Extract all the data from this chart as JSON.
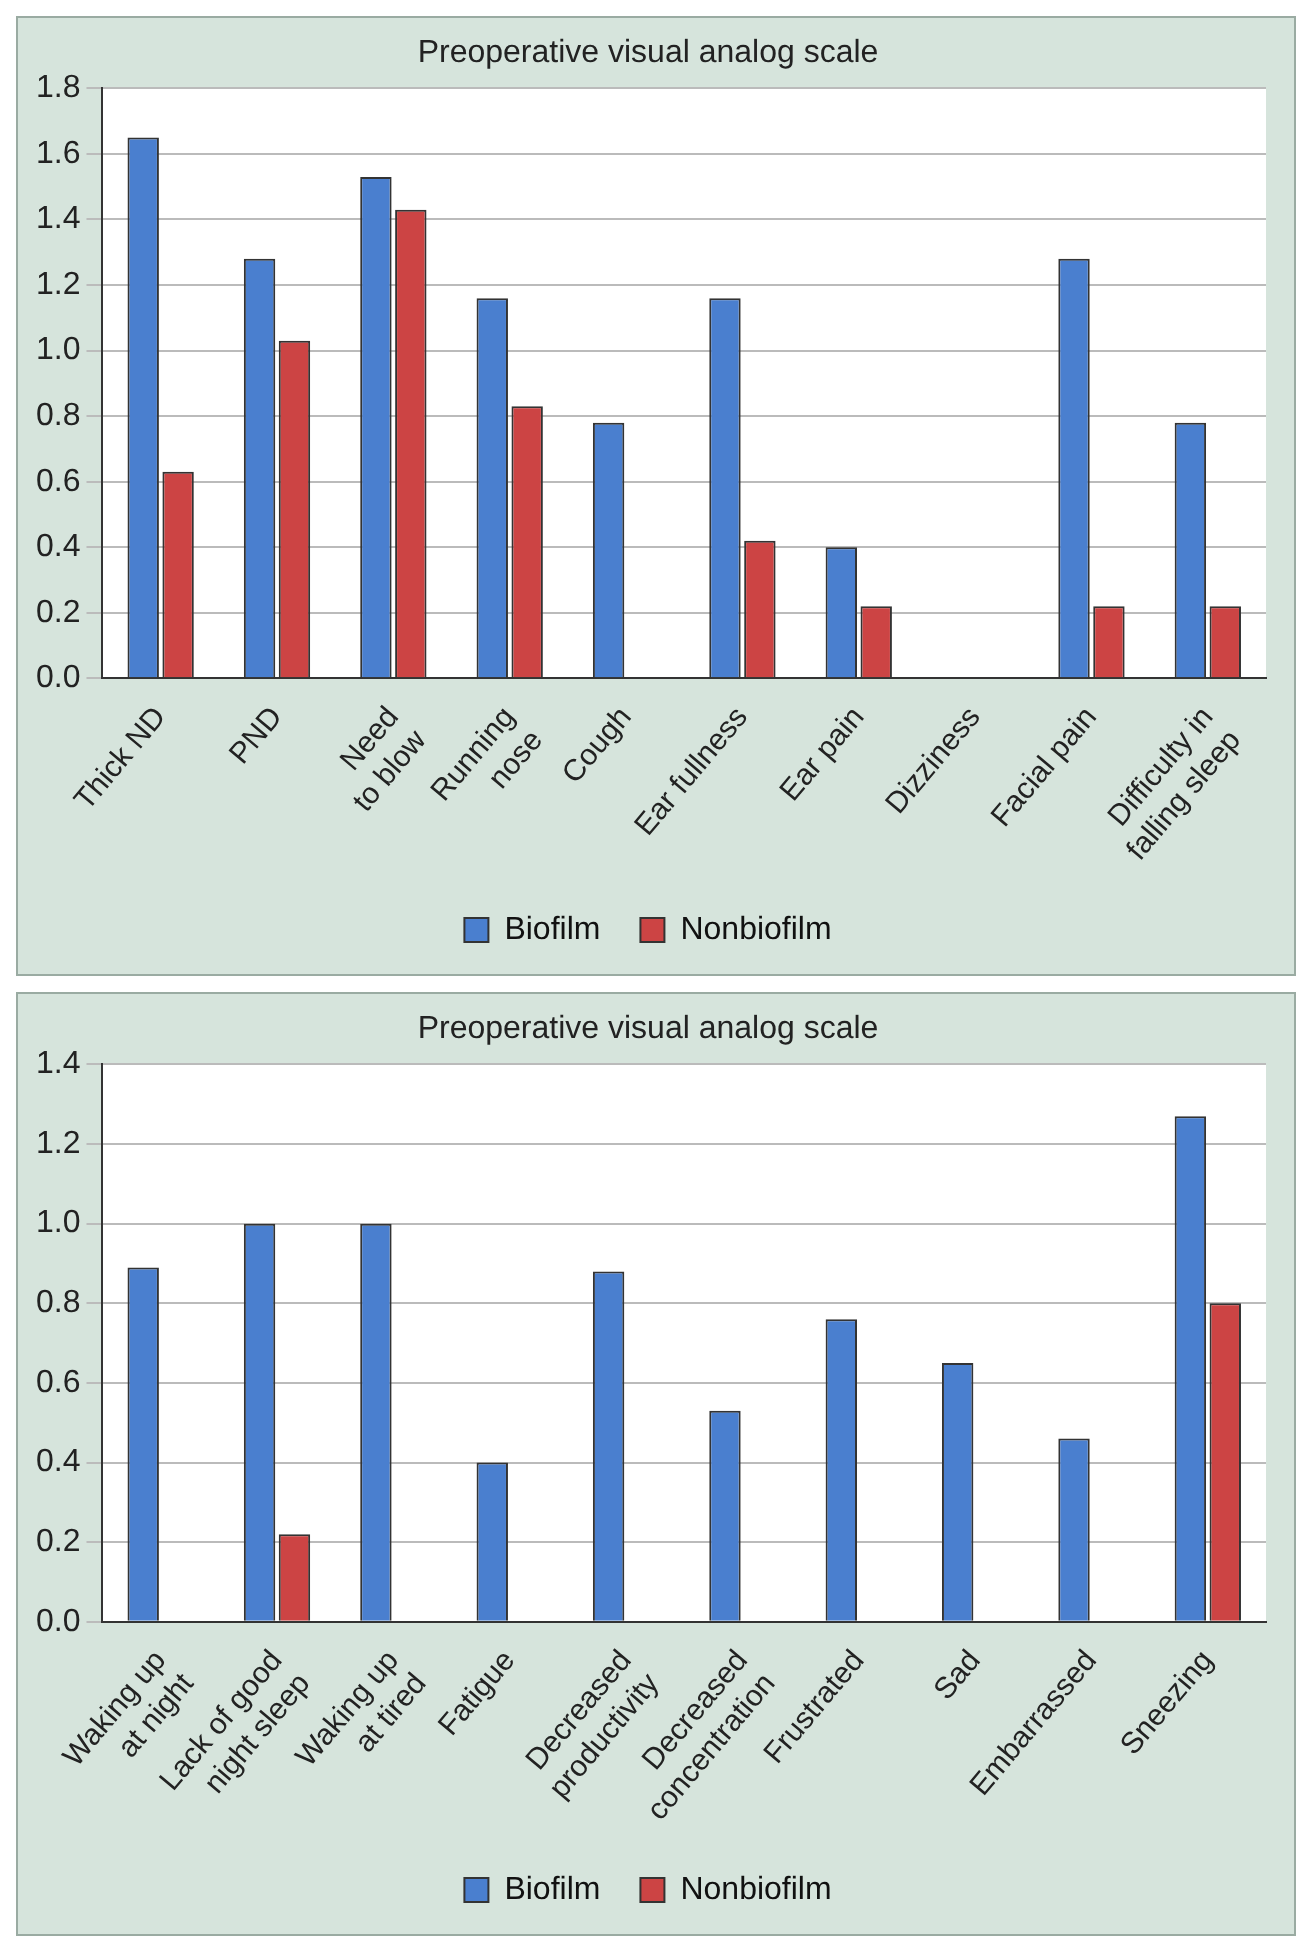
{
  "chart_data": [
    {
      "type": "bar",
      "title": "Preoperative visual analog scale",
      "categories": [
        "Thick ND",
        "PND",
        "Need\nto blow",
        "Running\nnose",
        "Cough",
        "Ear fullness",
        "Ear pain",
        "Dizziness",
        "Facial pain",
        "Difficulty in\nfalling sleep"
      ],
      "series": [
        {
          "name": "Biofilm",
          "color": "#4a7fcf",
          "values": [
            1.65,
            1.28,
            1.53,
            1.16,
            0.78,
            1.16,
            0.4,
            0,
            1.28,
            0.78
          ]
        },
        {
          "name": "Nonbiofilm",
          "color": "#cc4444",
          "values": [
            0.63,
            1.03,
            1.43,
            0.83,
            0,
            0.42,
            0.22,
            0,
            0.22,
            0.22
          ]
        }
      ],
      "ylim": [
        0,
        1.8
      ],
      "yticks": [
        {
          "value": 0,
          "label": "0.0"
        },
        {
          "value": 0.2,
          "label": "0.2"
        },
        {
          "value": 0.4,
          "label": "0.4"
        },
        {
          "value": 0.6,
          "label": "0.6"
        },
        {
          "value": 0.8,
          "label": "0.8"
        },
        {
          "value": 1,
          "label": "1.0"
        },
        {
          "value": 1.2,
          "label": "1.2"
        },
        {
          "value": 1.4,
          "label": "1.4"
        },
        {
          "value": 1.6,
          "label": "1.6"
        },
        {
          "value": 1.8,
          "label": "1.8"
        }
      ],
      "grid": "y",
      "legend": "bottom"
    },
    {
      "type": "bar",
      "title": "Preoperative visual analog scale",
      "categories": [
        "Waking up\nat night",
        "Lack of good\nnight sleep",
        "Waking up\nat tired",
        "Fatigue",
        "Decreased\nproductivity",
        "Decreased\nconcentration",
        "Frustrated",
        "Sad",
        "Embarrassed",
        "Sneezing"
      ],
      "series": [
        {
          "name": "Biofilm",
          "color": "#4a7fcf",
          "values": [
            0.89,
            1.0,
            1.0,
            0.4,
            0.88,
            0.53,
            0.76,
            0.65,
            0.46,
            1.27
          ]
        },
        {
          "name": "Nonbiofilm",
          "color": "#cc4444",
          "values": [
            0,
            0.22,
            0,
            0,
            0,
            0,
            0,
            0,
            0,
            0.8
          ]
        }
      ],
      "ylim": [
        0,
        1.4
      ],
      "yticks": [
        {
          "value": 0,
          "label": "0.0"
        },
        {
          "value": 0.2,
          "label": "0.2"
        },
        {
          "value": 0.4,
          "label": "0.4"
        },
        {
          "value": 0.6,
          "label": "0.6"
        },
        {
          "value": 0.8,
          "label": "0.8"
        },
        {
          "value": 1,
          "label": "1.0"
        },
        {
          "value": 1.2,
          "label": "1.2"
        },
        {
          "value": 1.4,
          "label": "1.4"
        }
      ],
      "grid": "y",
      "legend": "bottom"
    }
  ]
}
